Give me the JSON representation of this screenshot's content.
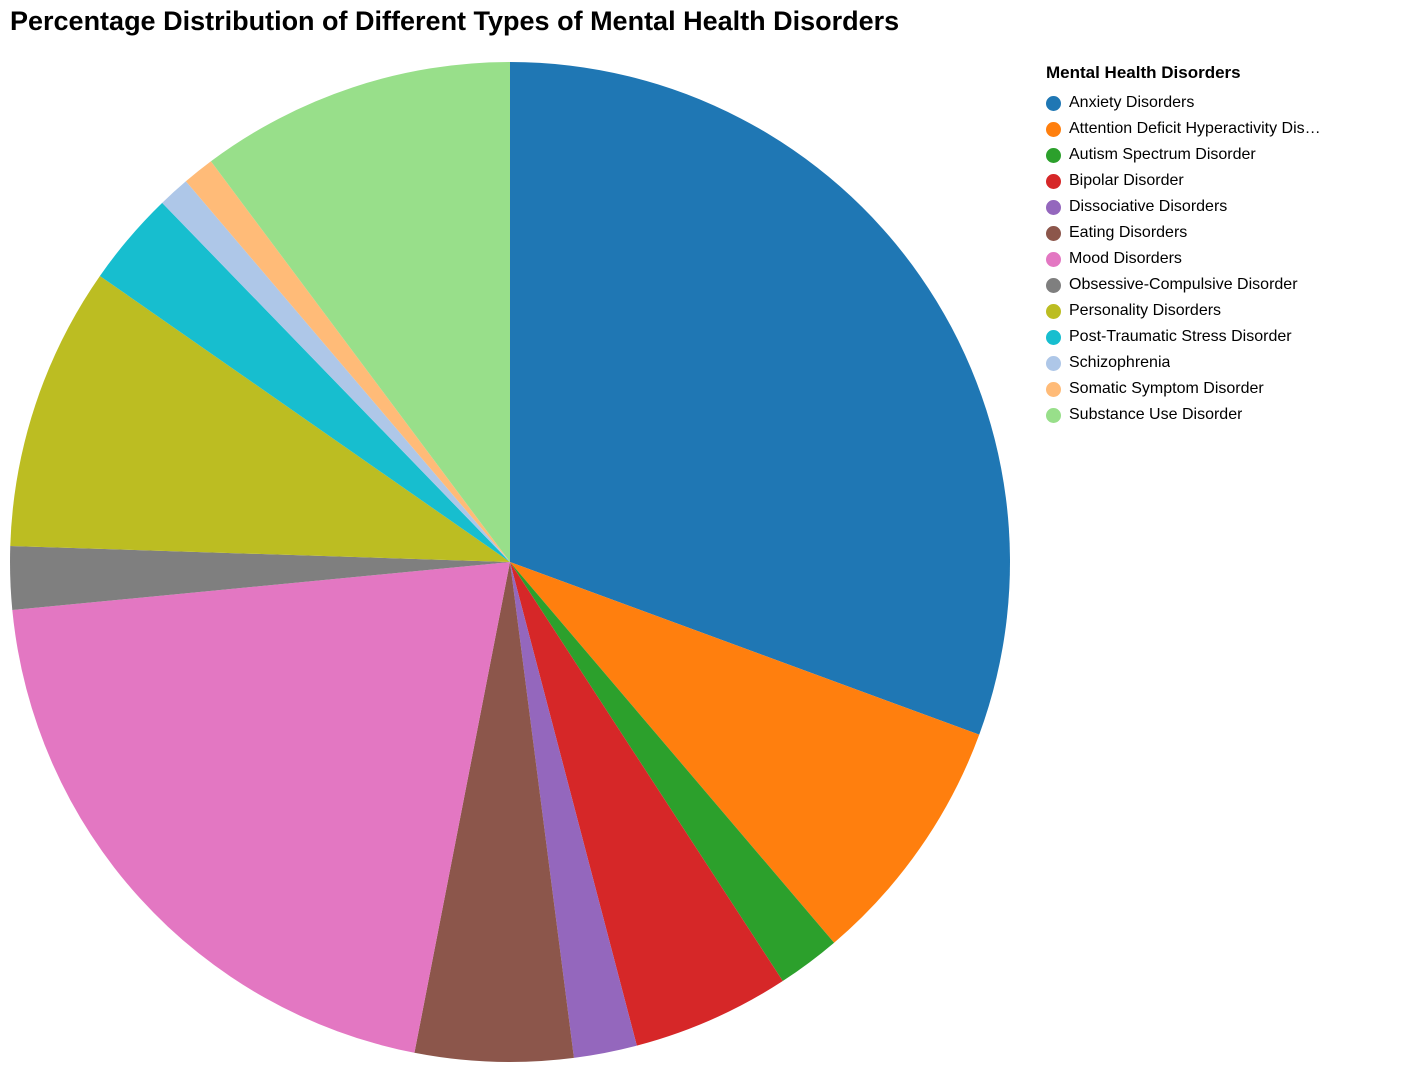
{
  "chart_data": {
    "type": "pie",
    "title": "Percentage Distribution of Different Types of Mental Health Disorders",
    "legend_title": "Mental Health Disorders",
    "legend_position": "right",
    "start_angle": "top (12 o'clock)",
    "direction": "clockwise",
    "slices": [
      {
        "label": "Anxiety Disorders",
        "legend_label": "Anxiety Disorders",
        "value": 30,
        "color": "#1f77b4"
      },
      {
        "label": "Attention Deficit Hyperactivity Disorder",
        "legend_label": "Attention Deficit Hyperactivity Dis…",
        "value": 8,
        "color": "#ff7f0e"
      },
      {
        "label": "Autism Spectrum Disorder",
        "legend_label": "Autism Spectrum Disorder",
        "value": 2,
        "color": "#2ca02c"
      },
      {
        "label": "Bipolar Disorder",
        "legend_label": "Bipolar Disorder",
        "value": 5,
        "color": "#d62728"
      },
      {
        "label": "Dissociative Disorders",
        "legend_label": "Dissociative Disorders",
        "value": 2,
        "color": "#9467bd"
      },
      {
        "label": "Eating Disorders",
        "legend_label": "Eating Disorders",
        "value": 5,
        "color": "#8c564b"
      },
      {
        "label": "Mood Disorders",
        "legend_label": "Mood Disorders",
        "value": 20,
        "color": "#e377c2"
      },
      {
        "label": "Obsessive-Compulsive Disorder",
        "legend_label": "Obsessive-Compulsive Disorder",
        "value": 2,
        "color": "#7f7f7f"
      },
      {
        "label": "Personality Disorders",
        "legend_label": "Personality Disorders",
        "value": 9,
        "color": "#bcbd22"
      },
      {
        "label": "Post-Traumatic Stress Disorder",
        "legend_label": "Post-Traumatic Stress Disorder",
        "value": 3,
        "color": "#17becf"
      },
      {
        "label": "Schizophrenia",
        "legend_label": "Schizophrenia",
        "value": 1,
        "color": "#aec7e8"
      },
      {
        "label": "Somatic Symptom Disorder",
        "legend_label": "Somatic Symptom Disorder",
        "value": 1,
        "color": "#ffbb78"
      },
      {
        "label": "Substance Use Disorder",
        "legend_label": "Substance Use Disorder",
        "value": 10,
        "color": "#98df8a"
      }
    ]
  }
}
